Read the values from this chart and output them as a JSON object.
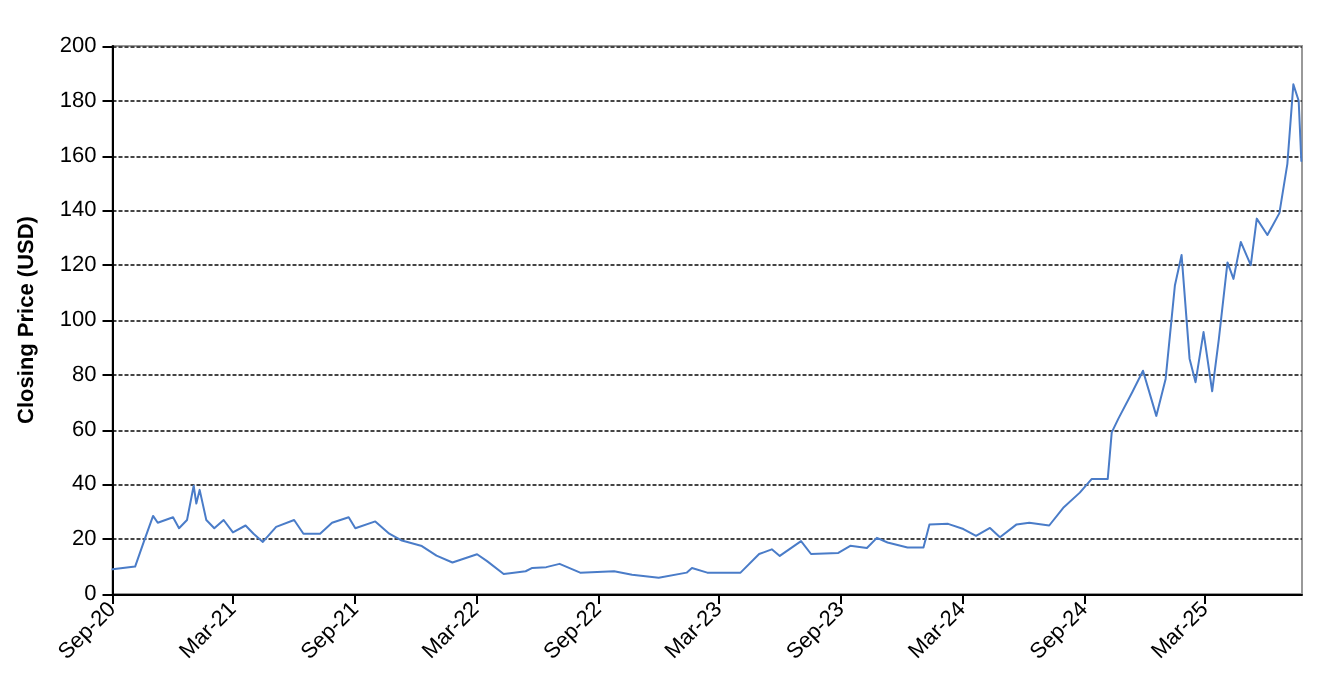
{
  "chart_data": {
    "type": "line",
    "ylabel": "Closing Price (USD)",
    "x": [
      "2020-09-01",
      "2020-10-05",
      "2020-10-18",
      "2020-11-01",
      "2020-11-08",
      "2020-12-01",
      "2020-12-10",
      "2020-12-22",
      "2021-01-01",
      "2021-01-05",
      "2021-01-10",
      "2021-01-20",
      "2021-02-01",
      "2021-02-15",
      "2021-03-01",
      "2021-03-20",
      "2021-04-01",
      "2021-04-15",
      "2021-05-05",
      "2021-06-01",
      "2021-06-15",
      "2021-07-10",
      "2021-07-28",
      "2021-08-22",
      "2021-09-01",
      "2021-10-01",
      "2021-10-22",
      "2021-11-10",
      "2021-12-10",
      "2022-01-01",
      "2022-01-25",
      "2022-03-03",
      "2022-03-18",
      "2022-04-12",
      "2022-05-15",
      "2022-05-25",
      "2022-06-15",
      "2022-07-05",
      "2022-08-05",
      "2022-09-25",
      "2022-10-22",
      "2022-12-01",
      "2023-01-12",
      "2023-01-20",
      "2023-02-12",
      "2023-04-03",
      "2023-05-01",
      "2023-05-20",
      "2023-06-01",
      "2023-07-03",
      "2023-07-18",
      "2023-08-28",
      "2023-09-15",
      "2023-10-10",
      "2023-10-25",
      "2023-11-10",
      "2023-12-10",
      "2024-01-03",
      "2024-01-12",
      "2024-02-09",
      "2024-03-03",
      "2024-03-22",
      "2024-04-12",
      "2024-04-27",
      "2024-05-22",
      "2024-06-10",
      "2024-07-10",
      "2024-08-01",
      "2024-08-25",
      "2024-09-12",
      "2024-10-06",
      "2024-10-12",
      "2024-10-22",
      "2024-11-12",
      "2024-11-28",
      "2024-12-18",
      "2025-01-01",
      "2025-01-15",
      "2025-01-25",
      "2025-02-06",
      "2025-02-15",
      "2025-02-27",
      "2025-03-12",
      "2025-03-22",
      "2025-04-04",
      "2025-04-13",
      "2025-04-24",
      "2025-05-09",
      "2025-05-18",
      "2025-06-03",
      "2025-06-21",
      "2025-07-03",
      "2025-07-12",
      "2025-07-20",
      "2025-07-24"
    ],
    "values": [
      9,
      10,
      19,
      28.5,
      26,
      28,
      24,
      27,
      39.5,
      33,
      38,
      27,
      24,
      27,
      22.5,
      25,
      22,
      19,
      24.5,
      27,
      22,
      22,
      26,
      28,
      24,
      26.5,
      22,
      19.5,
      17.5,
      14,
      11.5,
      14.5,
      12,
      7.3,
      8.3,
      9.5,
      9.8,
      11,
      7.8,
      8.3,
      7,
      5.9,
      7.8,
      9.5,
      7.8,
      7.8,
      14.6,
      16.3,
      13.9,
      19.3,
      14.6,
      15,
      17.6,
      16.8,
      20.5,
      18.8,
      17,
      17,
      25.4,
      25.6,
      23.7,
      21.2,
      24.1,
      20.7,
      25.4,
      26,
      25,
      31.7,
      37,
      42,
      42,
      59,
      64,
      73.7,
      81.5,
      65,
      78.5,
      112.7,
      123.7,
      85.9,
      77.3,
      95.6,
      74,
      93,
      121,
      115,
      128.5,
      120,
      137,
      131,
      139,
      157,
      186,
      180,
      158
    ],
    "color": "#4a7cc8",
    "xlim": [
      "2020-09-01",
      "2025-07-25"
    ],
    "xticks": [
      {
        "value": "2020-09-01",
        "label": "Sep-20"
      },
      {
        "value": "2021-03-01",
        "label": "Mar-21"
      },
      {
        "value": "2021-09-01",
        "label": "Sep-21"
      },
      {
        "value": "2022-03-01",
        "label": "Mar-22"
      },
      {
        "value": "2022-09-01",
        "label": "Sep-22"
      },
      {
        "value": "2023-03-01",
        "label": "Mar-23"
      },
      {
        "value": "2023-09-01",
        "label": "Sep-23"
      },
      {
        "value": "2024-03-01",
        "label": "Mar-24"
      },
      {
        "value": "2024-09-01",
        "label": "Sep-24"
      },
      {
        "value": "2025-03-01",
        "label": "Mar-25"
      }
    ],
    "ylim": [
      0,
      200
    ],
    "yticks": [
      0,
      20,
      40,
      60,
      80,
      100,
      120,
      140,
      160,
      180,
      200
    ],
    "grid": "y",
    "marker": "none",
    "line_style": "solid"
  }
}
